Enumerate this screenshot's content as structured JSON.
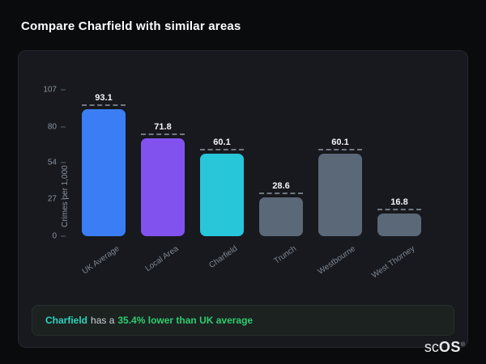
{
  "header": {
    "title": "Compare Charfield with similar areas"
  },
  "chart_data": {
    "type": "bar",
    "title": "Compare Charfield with similar areas",
    "ylabel": "Crimes per 1,000",
    "xlabel": "",
    "ymax": 107,
    "yticks": [
      107,
      80,
      54,
      27,
      0
    ],
    "categories": [
      "UK Average",
      "Local Area",
      "Charfield",
      "Trunch",
      "Westbourne",
      "West Thorney"
    ],
    "values": [
      93.1,
      71.8,
      60.1,
      28.6,
      60.1,
      16.8
    ],
    "value_labels": [
      "93.1",
      "71.8",
      "60.1",
      "28.6",
      "60.1",
      "16.8"
    ],
    "bar_colors": [
      "#3b7df5",
      "#8252ef",
      "#27c6d9",
      "#5a6878",
      "#5a6878",
      "#5a6878"
    ],
    "grid": "off",
    "legend": "none",
    "colors": {
      "uk_average": "#3b7df5",
      "local_area": "#8252ef",
      "charfield": "#27c6d9",
      "comparison_gray": "#5a6878",
      "summary_green": "#2ecc71",
      "summary_teal": "#2dd4bf"
    }
  },
  "summary": {
    "area": "Charfield",
    "connector": "has a",
    "stat": "35.4% lower than UK average"
  },
  "logo": {
    "prefix": "sc",
    "suffix": "OS",
    "registered": "®"
  }
}
